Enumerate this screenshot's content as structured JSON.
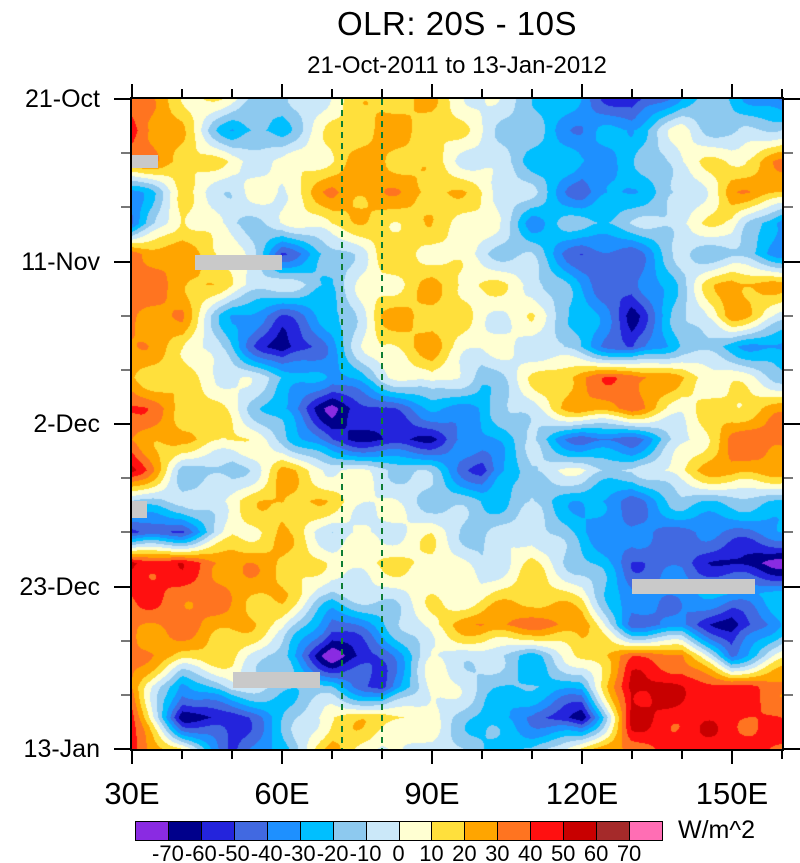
{
  "title": "OLR: 20S - 10S",
  "subtitle": "21-Oct-2011 to 13-Jan-2012",
  "units_label": "W/m^2",
  "chart_data": {
    "type": "heatmap",
    "title": "OLR: 20S - 10S",
    "subtitle": "21-Oct-2011 to 13-Jan-2012",
    "units": "W/m^2",
    "description": "Time-longitude Hovmoller plot of OLR anomalies averaged 20S-10S",
    "x_axis": {
      "kind": "longitude",
      "min": 30,
      "max": 160,
      "major_ticks": [
        30,
        60,
        90,
        120,
        150
      ],
      "major_tick_labels": [
        "30E",
        "60E",
        "90E",
        "120E",
        "150E"
      ],
      "minor_tick_step": 10
    },
    "y_axis": {
      "kind": "time",
      "min_day": 0,
      "max_day": 84,
      "major_tick_days": [
        0,
        21,
        42,
        63,
        84
      ],
      "major_tick_labels": [
        "21-Oct",
        "11-Nov",
        "2-Dec",
        "23-Dec",
        "13-Jan"
      ],
      "minor_tick_step_days": 7
    },
    "levels": [
      -70,
      -60,
      -50,
      -40,
      -30,
      -20,
      -10,
      0,
      10,
      20,
      30,
      40,
      50,
      60,
      70
    ],
    "colors": [
      "#8A2BE2",
      "#00008B",
      "#2424DC",
      "#4169E1",
      "#1E90FF",
      "#00BFFF",
      "#8DC9EF",
      "#CBE8F9",
      "#FFFFD2",
      "#FFE03C",
      "#FFA500",
      "#FF7420",
      "#FF1010",
      "#C80000",
      "#A52A2A",
      "#FF6EB4"
    ],
    "grid_lons": [
      30,
      40,
      50,
      60,
      70,
      80,
      90,
      100,
      110,
      120,
      130,
      140,
      150,
      160
    ],
    "grid_days": [
      0,
      4,
      8,
      12,
      16,
      20,
      24,
      28,
      32,
      36,
      40,
      44,
      48,
      52,
      56,
      60,
      64,
      68,
      72,
      76,
      80,
      84
    ],
    "grid_values_wm2": [
      [
        28,
        15,
        5,
        -15,
        5,
        15,
        15,
        0,
        -10,
        -30,
        -65,
        -30,
        -20,
        -45
      ],
      [
        45,
        20,
        -25,
        -20,
        5,
        20,
        18,
        5,
        -15,
        -40,
        -30,
        0,
        -15,
        0
      ],
      [
        35,
        25,
        5,
        -5,
        10,
        25,
        15,
        0,
        -20,
        -35,
        -30,
        5,
        15,
        30
      ],
      [
        -30,
        10,
        -10,
        0,
        28,
        30,
        28,
        10,
        -15,
        -50,
        -25,
        -10,
        28,
        25
      ],
      [
        -40,
        15,
        -15,
        -5,
        18,
        20,
        15,
        5,
        -35,
        -15,
        -10,
        5,
        10,
        -45
      ],
      [
        35,
        18,
        10,
        -45,
        -15,
        15,
        8,
        -10,
        -15,
        -45,
        -40,
        -10,
        -20,
        -35
      ],
      [
        32,
        25,
        10,
        0,
        -15,
        5,
        15,
        10,
        5,
        -30,
        -50,
        -15,
        25,
        20
      ],
      [
        30,
        28,
        -25,
        -45,
        -30,
        15,
        20,
        5,
        10,
        -20,
        -65,
        -20,
        25,
        5
      ],
      [
        30,
        20,
        -20,
        -75,
        -35,
        10,
        25,
        5,
        0,
        -25,
        -60,
        -15,
        -20,
        -35
      ],
      [
        25,
        15,
        0,
        -20,
        -40,
        -5,
        15,
        -15,
        5,
        25,
        40,
        20,
        10,
        -10
      ],
      [
        45,
        20,
        0,
        -35,
        -70,
        -45,
        -30,
        -30,
        -5,
        25,
        35,
        10,
        15,
        20
      ],
      [
        30,
        15,
        10,
        -10,
        -50,
        -60,
        -60,
        -35,
        -15,
        -45,
        -40,
        -5,
        30,
        35
      ],
      [
        50,
        -15,
        -20,
        25,
        5,
        -5,
        -20,
        -60,
        -5,
        5,
        -10,
        10,
        25,
        20
      ],
      [
        -15,
        -10,
        10,
        28,
        15,
        -5,
        -15,
        -20,
        -10,
        -25,
        -45,
        -20,
        -20,
        -15
      ],
      [
        -55,
        -45,
        10,
        20,
        -10,
        -5,
        5,
        -10,
        5,
        -30,
        -45,
        -45,
        -40,
        -30
      ],
      [
        55,
        50,
        30,
        18,
        0,
        10,
        15,
        -5,
        10,
        -20,
        -50,
        -45,
        -60,
        -70
      ],
      [
        45,
        40,
        25,
        15,
        -10,
        0,
        10,
        5,
        15,
        0,
        -40,
        -30,
        -25,
        -30
      ],
      [
        35,
        30,
        20,
        5,
        -45,
        -20,
        10,
        28,
        30,
        30,
        -40,
        -35,
        -70,
        -30
      ],
      [
        30,
        15,
        10,
        -15,
        -75,
        -45,
        -5,
        -10,
        -25,
        15,
        40,
        35,
        -45,
        0
      ],
      [
        25,
        -40,
        0,
        -10,
        -20,
        -60,
        5,
        -15,
        -20,
        -20,
        58,
        45,
        40,
        35
      ],
      [
        40,
        -65,
        -55,
        -20,
        10,
        15,
        0,
        -20,
        -35,
        -70,
        50,
        40,
        45,
        40
      ],
      [
        45,
        10,
        -50,
        -25,
        20,
        -5,
        0,
        -15,
        -20,
        10,
        30,
        45,
        50,
        45
      ]
    ],
    "reference_lines": {
      "color": "#0E7D33",
      "style": "dashed",
      "longitudes": [
        72,
        80
      ]
    },
    "missing_data": {
      "color": "#C9C9C9",
      "patches": [
        {
          "lon0": 30,
          "lon1": 35.2,
          "day0": 7.2,
          "day1": 8.9
        },
        {
          "lon0": 42.6,
          "lon1": 60,
          "day0": 20.2,
          "day1": 22.1
        },
        {
          "lon0": 30,
          "lon1": 33,
          "day0": 51.9,
          "day1": 54.1
        },
        {
          "lon0": 50.2,
          "lon1": 67.6,
          "day0": 74.1,
          "day1": 76.1
        },
        {
          "lon0": 130,
          "lon1": 154.6,
          "day0": 62,
          "day1": 64
        }
      ]
    }
  }
}
